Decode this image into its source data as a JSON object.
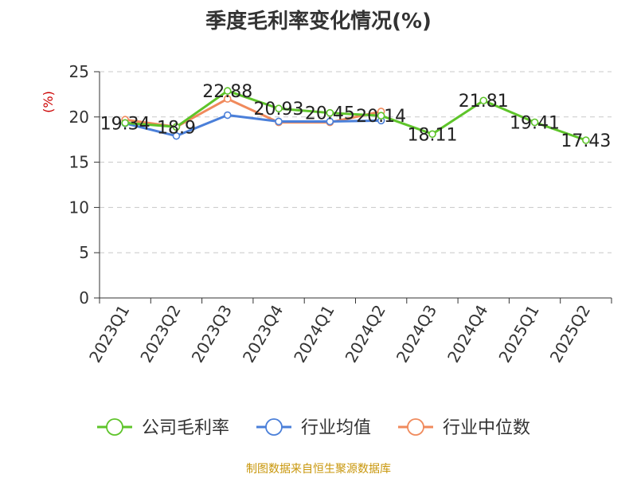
{
  "chart_data": {
    "type": "line",
    "title": "季度毛利率变化情况(%)",
    "ylabel": "(%)",
    "xlabel": "",
    "ylim": [
      0,
      25
    ],
    "yticks": [
      0,
      5,
      10,
      15,
      20,
      25
    ],
    "grid": true,
    "legend_position": "bottom",
    "categories": [
      "2023Q1",
      "2023Q2",
      "2023Q3",
      "2023Q4",
      "2024Q1",
      "2024Q2",
      "2024Q3",
      "2024Q4",
      "2025Q1",
      "2025Q2"
    ],
    "series": [
      {
        "name": "公司毛利率",
        "color": "#5ec42a",
        "values": [
          19.34,
          18.9,
          22.88,
          20.93,
          20.45,
          20.14,
          18.11,
          21.81,
          19.41,
          17.43
        ],
        "labels": [
          "19.34",
          "18.9",
          "22.88",
          "20.93",
          "20.45",
          "20.14",
          "18.11",
          "21.81",
          "19.41",
          "17.43"
        ]
      },
      {
        "name": "行业均值",
        "color": "#4a7fd9",
        "values": [
          19.3,
          17.9,
          20.2,
          19.5,
          19.5,
          19.6,
          null,
          null,
          null,
          null
        ]
      },
      {
        "name": "行业中位数",
        "color": "#f08a5c",
        "values": [
          19.7,
          18.9,
          22.0,
          19.4,
          19.4,
          20.6,
          null,
          null,
          null,
          null
        ]
      }
    ]
  },
  "footer": "制图数据来自恒生聚源数据库"
}
